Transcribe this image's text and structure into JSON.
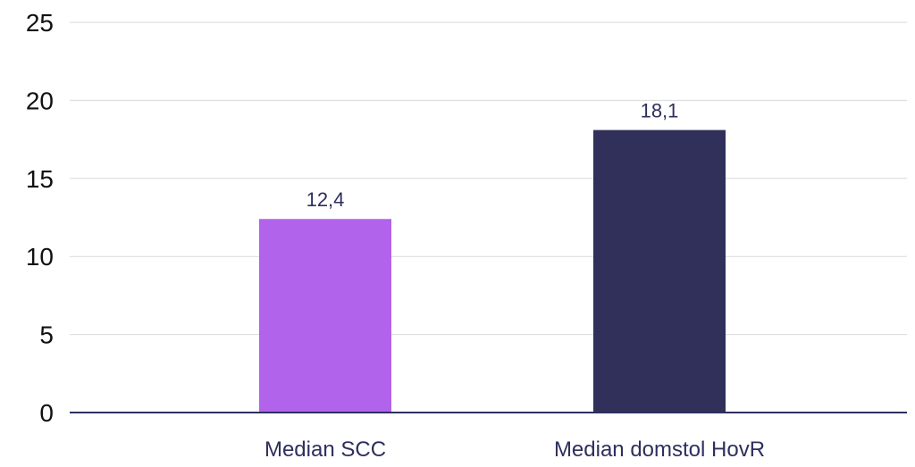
{
  "chart_data": {
    "type": "bar",
    "title": "",
    "xlabel": "",
    "ylabel": "",
    "ylim": [
      0,
      25
    ],
    "yticks": [
      0,
      5,
      10,
      15,
      20,
      25
    ],
    "ytick_labels": [
      "0",
      "5",
      "10",
      "15",
      "20",
      "25"
    ],
    "grid": true,
    "legend": "none",
    "categories": [
      "Median SCC",
      "Median domstol HovR"
    ],
    "values": [
      12.4,
      18.1
    ],
    "value_labels": [
      "12,4",
      "18,1"
    ],
    "bar_colors": [
      "#b163eb",
      "#30305b"
    ]
  },
  "colors": {
    "grid": "#d9d9d9",
    "axis": "#2e2f5e",
    "label_text": "#2e2f5e",
    "tick_text": "#111111"
  }
}
